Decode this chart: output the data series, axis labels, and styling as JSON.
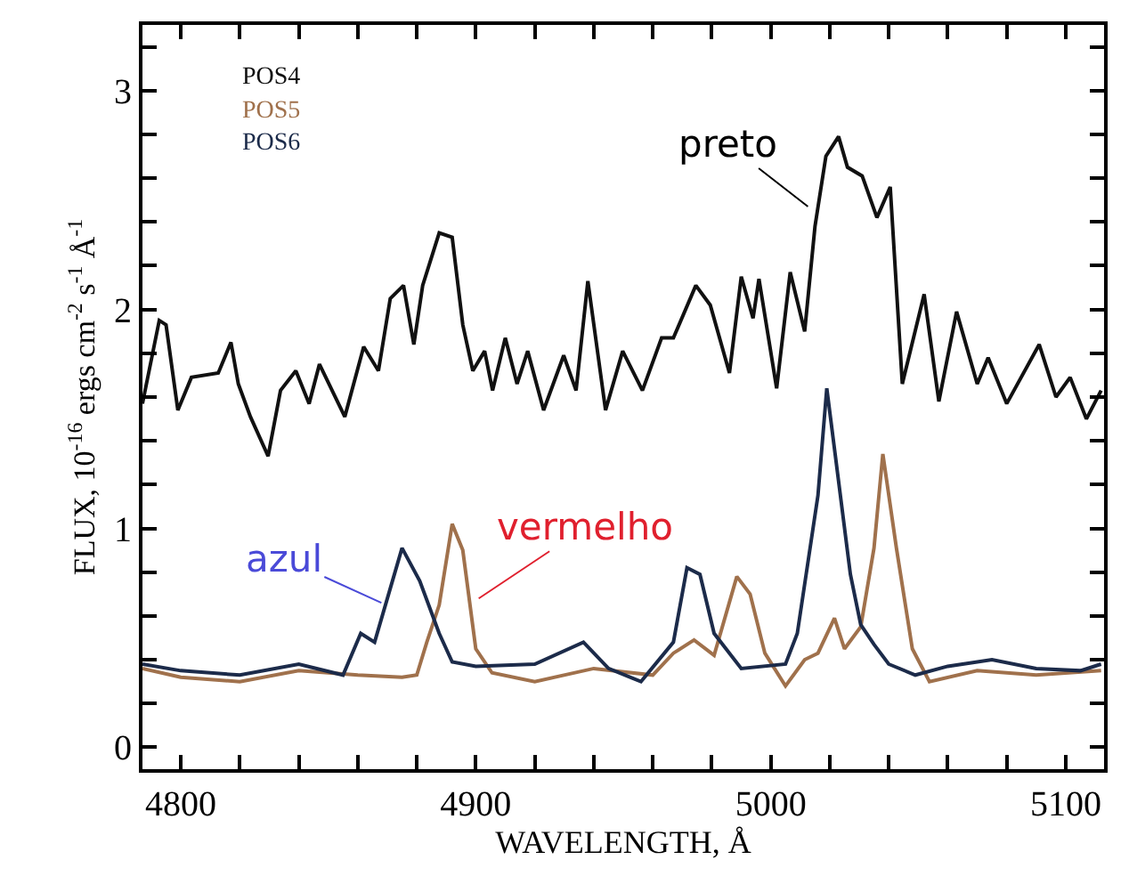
{
  "chart_data": {
    "type": "line",
    "xlabel": "WAVELENGTH, Å",
    "ylabel": "FLUX, 10$^{-16}$ ergs cm$^{-2}$ s$^{-1}$ Å$^{-1}$",
    "xlim": [
      4787,
      5113
    ],
    "ylim": [
      -0.1,
      3.3
    ],
    "xticks": [
      4800,
      {
        "value": 4820,
        "label": null
      },
      {
        "value": 4840,
        "label": null
      },
      {
        "value": 4860,
        "label": null
      },
      {
        "value": 4880,
        "label": null
      },
      4900,
      {
        "value": 4920,
        "label": null
      },
      {
        "value": 4940,
        "label": null
      },
      {
        "value": 4960,
        "label": null
      },
      {
        "value": 4980,
        "label": null
      },
      5000,
      {
        "value": 5020,
        "label": null
      },
      {
        "value": 5040,
        "label": null
      },
      {
        "value": 5060,
        "label": null
      },
      {
        "value": 5080,
        "label": null
      },
      5100
    ],
    "yticks": [
      0,
      {
        "value": 0.2,
        "label": null
      },
      {
        "value": 0.4,
        "label": null
      },
      {
        "value": 0.6,
        "label": null
      },
      {
        "value": 0.8,
        "label": null
      },
      1,
      {
        "value": 1.2,
        "label": null
      },
      {
        "value": 1.4,
        "label": null
      },
      {
        "value": 1.6,
        "label": null
      },
      {
        "value": 1.8,
        "label": null
      },
      2,
      {
        "value": 2.2,
        "label": null
      },
      {
        "value": 2.4,
        "label": null
      },
      {
        "value": 2.6,
        "label": null
      },
      {
        "value": 2.8,
        "label": null
      },
      3,
      {
        "value": 3.2,
        "label": null
      }
    ],
    "legend": "top left",
    "marker": "none",
    "line_style": "solid",
    "series": [
      {
        "name": "POS4",
        "color": "#111111",
        "x": [
          4787,
          4792.7,
          4795,
          4799,
          4803.6,
          4812.7,
          4817,
          4819.5,
          4823.6,
          4829.6,
          4833.8,
          4839,
          4843.5,
          4847,
          4855.6,
          4862,
          4867,
          4871,
          4875.5,
          4879,
          4882,
          4887.6,
          4892,
          4895.6,
          4899,
          4903,
          4905.7,
          4910,
          4914,
          4917.6,
          4923,
          4929.8,
          4934,
          4938,
          4944,
          4949.8,
          4956.5,
          4963,
          4967,
          4974.6,
          4979.5,
          4986,
          4990,
          4994,
          4996,
          5002,
          5006.6,
          5011.5,
          5015,
          5018.7,
          5023,
          5026,
          5031,
          5036,
          5040.5,
          5044.6,
          5052,
          5057,
          5063,
          5070,
          5073.7,
          5080,
          5091,
          5096.7,
          5101.5,
          5107,
          5112
        ],
        "values": [
          1.57,
          1.95,
          1.93,
          1.54,
          1.69,
          1.71,
          1.85,
          1.66,
          1.51,
          1.33,
          1.63,
          1.72,
          1.57,
          1.75,
          1.51,
          1.83,
          1.72,
          2.05,
          2.11,
          1.84,
          2.11,
          2.35,
          2.33,
          1.93,
          1.72,
          1.81,
          1.63,
          1.87,
          1.66,
          1.81,
          1.54,
          1.79,
          1.63,
          2.13,
          1.54,
          1.81,
          1.63,
          1.87,
          1.87,
          2.11,
          2.02,
          1.71,
          2.15,
          1.96,
          2.14,
          1.64,
          2.17,
          1.9,
          2.38,
          2.7,
          2.79,
          2.65,
          2.61,
          2.42,
          2.56,
          1.66,
          2.07,
          1.58,
          1.99,
          1.66,
          1.78,
          1.57,
          1.84,
          1.6,
          1.69,
          1.5,
          1.63
        ]
      },
      {
        "name": "POS5",
        "color": "#a0714c",
        "x": [
          4787,
          4800,
          4820,
          4840,
          4860,
          4875,
          4880,
          4883.4,
          4887.6,
          4892,
          4895.6,
          4900,
          4905.5,
          4920,
          4940,
          4960,
          4967,
          4974,
          4980.8,
          4988.5,
          4993,
          4998,
          5005,
          5011.5,
          5016,
          5021.6,
          5025,
          5030.5,
          5035,
          5038,
          5042.6,
          5048,
          5053.8,
          5070,
          5090,
          5112
        ],
        "values": [
          0.36,
          0.32,
          0.3,
          0.35,
          0.33,
          0.32,
          0.33,
          0.48,
          0.65,
          1.02,
          0.9,
          0.45,
          0.34,
          0.3,
          0.36,
          0.33,
          0.43,
          0.49,
          0.42,
          0.78,
          0.7,
          0.43,
          0.28,
          0.4,
          0.43,
          0.59,
          0.45,
          0.55,
          0.91,
          1.34,
          0.91,
          0.45,
          0.3,
          0.35,
          0.33,
          0.35
        ]
      },
      {
        "name": "POS6",
        "color": "#1c2b4a",
        "x": [
          4787,
          4800,
          4820,
          4840,
          4855,
          4861,
          4865.7,
          4875,
          4881,
          4887.6,
          4892,
          4900,
          4920,
          4936.5,
          4945,
          4956,
          4967,
          4971.6,
          4976,
          4980.8,
          4990,
          5005,
          5009,
          5016,
          5019,
          5027,
          5030.5,
          5035,
          5040,
          5049,
          5060,
          5075,
          5090,
          5105,
          5112
        ],
        "values": [
          0.38,
          0.35,
          0.33,
          0.38,
          0.33,
          0.52,
          0.48,
          0.91,
          0.76,
          0.52,
          0.39,
          0.37,
          0.38,
          0.48,
          0.36,
          0.3,
          0.48,
          0.82,
          0.79,
          0.52,
          0.36,
          0.38,
          0.52,
          1.15,
          1.64,
          0.79,
          0.56,
          0.47,
          0.38,
          0.33,
          0.37,
          0.4,
          0.36,
          0.35,
          0.38
        ]
      }
    ],
    "annotations": [
      {
        "text": "preto",
        "x": 5012.6,
        "y": 2.47
      },
      {
        "text": "azul",
        "x": 4868,
        "y": 0.66
      },
      {
        "text": "vermelho",
        "x": 4901,
        "y": 0.68
      }
    ]
  }
}
